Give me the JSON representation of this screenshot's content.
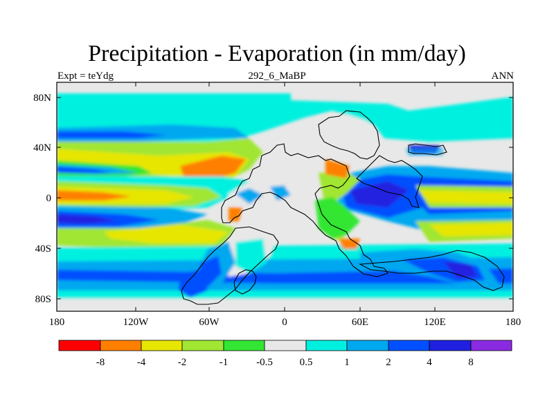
{
  "title": "Precipitation - Evaporation (in mm/day)",
  "subtitle_left": "Expt = teYdg",
  "subtitle_center": "292_6_MaBP",
  "subtitle_right": "ANN",
  "y_ticks": [
    "80N",
    "40N",
    "0",
    "40S",
    "80S"
  ],
  "x_ticks": [
    "180",
    "120W",
    "60W",
    "0",
    "60E",
    "120E",
    "180"
  ],
  "colorbar": {
    "colors": [
      "#ff0000",
      "#ff8000",
      "#e6e600",
      "#a0e632",
      "#33e633",
      "#e8e8e8",
      "#00f0e0",
      "#00a8f0",
      "#0050ff",
      "#2020e0",
      "#8a2be2"
    ],
    "labels": [
      "-8",
      "-4",
      "-2",
      "-1",
      "-0.5",
      "0.5",
      "1",
      "2",
      "4",
      "8"
    ]
  }
}
